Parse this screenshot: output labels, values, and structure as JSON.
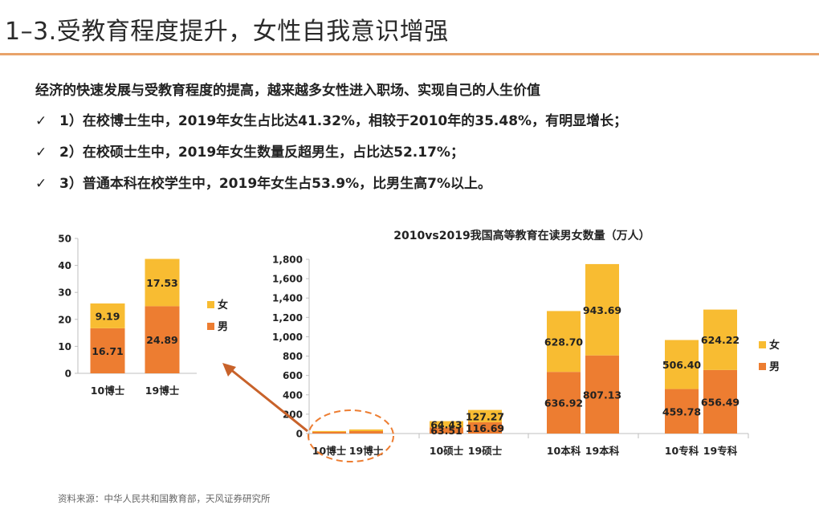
{
  "page": {
    "title": "1–3.受教育程度提升，女性自我意识增强",
    "headline": "经济的快速发展与受教育程度的提高，越来越多女性进入职场、实现自己的人生价值",
    "bullets": [
      {
        "check": "✓",
        "text": "1）在校博士生中，2019年女生占比达41.32%，相较于2010年的35.48%，有明显增长；"
      },
      {
        "check": "✓",
        "text": "2）在校硕士生中，2019年女生数量反超男生，占比达52.17%；"
      },
      {
        "check": "✓",
        "text": "3）普通本科在校学生中，2019年女生占53.9%，比男生高7%以上。"
      }
    ],
    "source": "资料来源：中华人民共和国教育部，天风证券研究所",
    "colors": {
      "female": "#F8BC32",
      "male": "#ED7D31",
      "arrow": "#C8622A",
      "axis": "#bfbfbf"
    }
  },
  "chart_data": [
    {
      "type": "bar",
      "stacked": true,
      "title": "",
      "categories": [
        "10博士",
        "19博士"
      ],
      "series": [
        {
          "name": "男",
          "values": [
            16.71,
            24.89
          ]
        },
        {
          "name": "女",
          "values": [
            9.19,
            17.53
          ]
        }
      ],
      "yticks": [
        "0",
        "10",
        "20",
        "30",
        "40",
        "50"
      ],
      "ylim": [
        0,
        50
      ],
      "legend": "right"
    },
    {
      "type": "bar",
      "stacked": true,
      "title": "2010vs2019我国高等教育在读男女数量（万人）",
      "categories": [
        "10博士",
        "19博士",
        "10硕士",
        "19硕士",
        "10本科",
        "19本科",
        "10专科",
        "19专科"
      ],
      "series": [
        {
          "name": "男",
          "values": [
            16.71,
            24.89,
            63.51,
            116.69,
            636.92,
            807.13,
            459.78,
            656.49
          ],
          "labels": [
            "",
            "",
            "63.51",
            "116.69",
            "636.92",
            "807.13",
            "459.78",
            "656.49"
          ]
        },
        {
          "name": "女",
          "values": [
            9.19,
            17.53,
            64.43,
            127.27,
            628.7,
            943.69,
            506.4,
            624.22
          ],
          "labels": [
            "",
            "",
            "64.43",
            "127.27",
            "628.70",
            "943.69",
            "506.40",
            "624.22"
          ]
        }
      ],
      "yticks": [
        "0",
        "200",
        "400",
        "600",
        "800",
        "1,000",
        "1,200",
        "1,400",
        "1,600",
        "1,800"
      ],
      "ylim": [
        0,
        1800
      ],
      "legend": "right"
    }
  ]
}
